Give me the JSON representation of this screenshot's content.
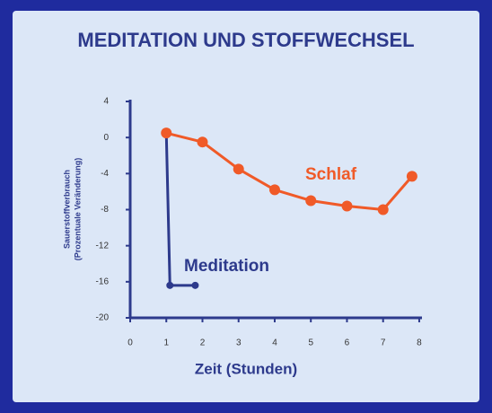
{
  "chart_data": {
    "type": "line",
    "title": "MEDITATION UND STOFFWECHSEL",
    "y_label": [
      "Sauerstoffverbrauch",
      "(Prozentuale Veränderung)"
    ],
    "x_label": "Zeit (Stunden)",
    "xlim": [
      0,
      8.2
    ],
    "xticks": [
      0,
      1,
      2,
      3,
      4,
      5,
      6,
      7,
      8
    ],
    "ylim": [
      -20,
      4
    ],
    "yticks": [
      4,
      0,
      -4,
      -8,
      -12,
      -16,
      -20
    ],
    "series": [
      {
        "name": "Meditation",
        "color": "#2d3a8c",
        "x": [
          1,
          1.1,
          1.8
        ],
        "values": [
          0.5,
          -16.4,
          -16.4
        ]
      },
      {
        "name": "Schlaf",
        "color": "#f05a28",
        "x": [
          1,
          2,
          3,
          4,
          5,
          6,
          7,
          7.8
        ],
        "values": [
          0.5,
          -0.5,
          -3.5,
          -5.8,
          -7,
          -7.6,
          -8,
          -4.3
        ]
      }
    ]
  }
}
